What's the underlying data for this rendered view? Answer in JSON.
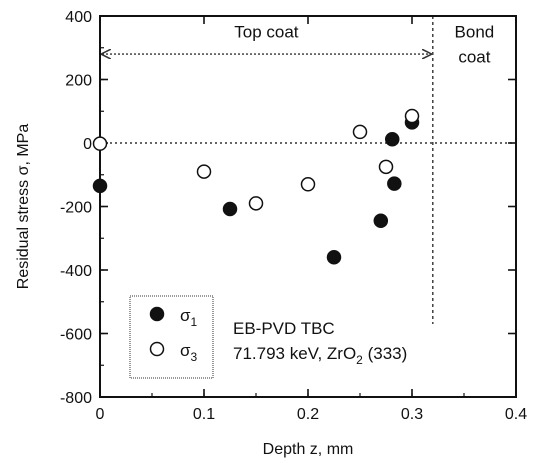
{
  "chart_data": {
    "type": "scatter",
    "xlabel": "Depth z, mm",
    "ylabel": "Residual stress σ, MPa",
    "xlim": [
      0,
      0.4
    ],
    "ylim": [
      -800,
      400
    ],
    "xticks": [
      0,
      0.1,
      0.2,
      0.3,
      0.4
    ],
    "xtick_labels": [
      "0",
      "0.1",
      "0.2",
      "0.3",
      "0.4"
    ],
    "yticks": [
      -800,
      -600,
      -400,
      -200,
      0,
      200,
      400
    ],
    "ytick_labels": [
      "-800",
      "-600",
      "-400",
      "-200",
      "0",
      "200",
      "400"
    ],
    "grid": false,
    "legend_placement": "bottom-left",
    "series": [
      {
        "name": "σ1",
        "legend_symbol": "σ",
        "legend_subscript": "1",
        "marker": "filled-circle",
        "color": "#111111",
        "points": [
          {
            "x": 0.0,
            "y": -135
          },
          {
            "x": 0.125,
            "y": -208
          },
          {
            "x": 0.225,
            "y": -360
          },
          {
            "x": 0.27,
            "y": -245
          },
          {
            "x": 0.281,
            "y": 12
          },
          {
            "x": 0.283,
            "y": -128
          },
          {
            "x": 0.3,
            "y": 65
          }
        ]
      },
      {
        "name": "σ3",
        "legend_symbol": "σ",
        "legend_subscript": "3",
        "marker": "open-circle",
        "color": "#111111",
        "points": [
          {
            "x": 0.0,
            "y": -2
          },
          {
            "x": 0.1,
            "y": -90
          },
          {
            "x": 0.15,
            "y": -190
          },
          {
            "x": 0.2,
            "y": -130
          },
          {
            "x": 0.25,
            "y": 35
          },
          {
            "x": 0.275,
            "y": -75
          },
          {
            "x": 0.3,
            "y": 85
          }
        ]
      }
    ],
    "annotations": {
      "top_coat_label": "Top coat",
      "bond_coat_line1": "Bond",
      "bond_coat_line2": "coat",
      "info_line1": "EB-PVD TBC",
      "info_line2_prefix": "71.793 keV, ZrO",
      "info_line2_subscript": "2",
      "info_line2_suffix": " (333)"
    },
    "reference_lines": {
      "zero_stress_y": 0,
      "interface_x": 0.32,
      "top_coat_arrow": {
        "x_start": 0,
        "x_end": 0.32,
        "y": 280
      }
    }
  }
}
